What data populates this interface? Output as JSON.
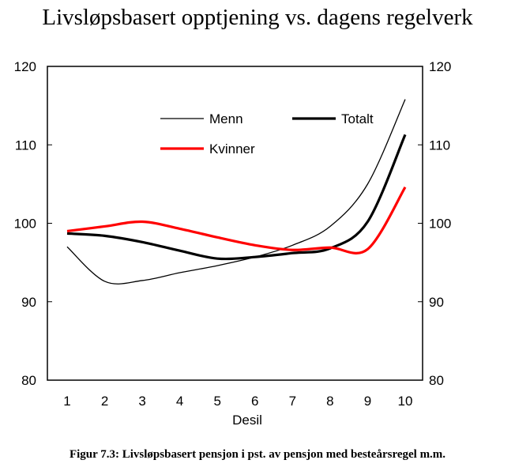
{
  "chart_data": {
    "type": "line",
    "title": "Livsløpsbasert opptjening vs. dagens regelverk",
    "xlabel": "Desil",
    "ylabel": "",
    "x": [
      1,
      2,
      3,
      4,
      5,
      6,
      7,
      8,
      9,
      10
    ],
    "ylim": [
      80,
      120
    ],
    "yticks": [
      80,
      90,
      100,
      110,
      120
    ],
    "grid": false,
    "legend": "top-inside",
    "series": [
      {
        "name": "Menn",
        "color": "#000000",
        "width": "thin",
        "values": [
          97.0,
          92.6,
          92.7,
          93.7,
          94.6,
          95.7,
          97.2,
          99.6,
          105.0,
          115.8
        ]
      },
      {
        "name": "Totalt",
        "color": "#000000",
        "width": "thick",
        "values": [
          98.7,
          98.4,
          97.6,
          96.5,
          95.5,
          95.7,
          96.2,
          96.8,
          100.2,
          111.3
        ]
      },
      {
        "name": "Kvinner",
        "color": "#ff0000",
        "width": "thick",
        "values": [
          99.0,
          99.6,
          100.2,
          99.3,
          98.2,
          97.2,
          96.6,
          96.9,
          96.7,
          104.6
        ]
      }
    ]
  },
  "caption": "Figur 7.3: Livsløpsbasert pensjon i pst. av pensjon med besteårsregel m.m."
}
